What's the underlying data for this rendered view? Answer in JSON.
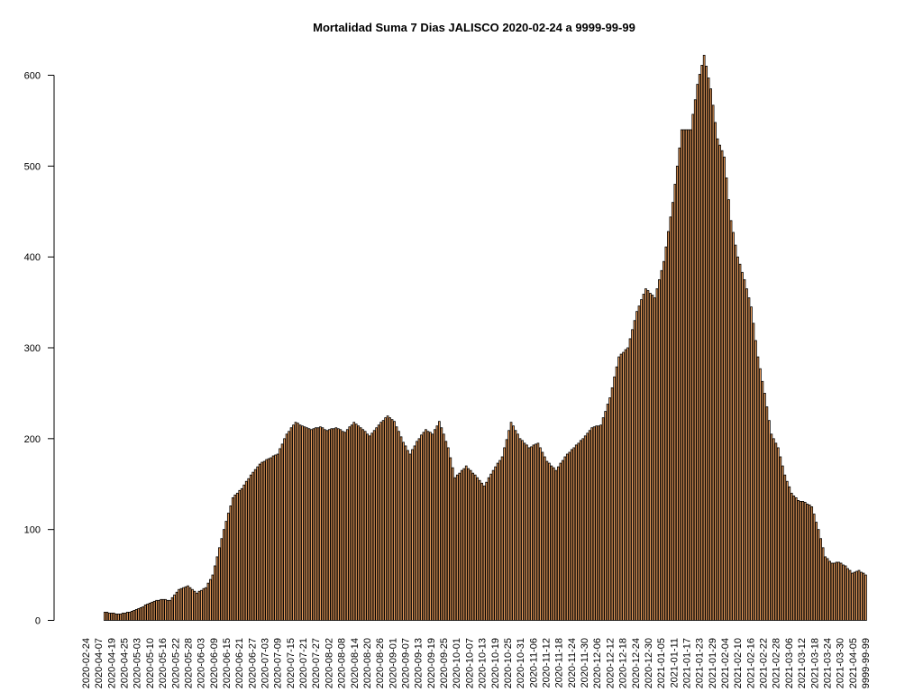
{
  "chart_data": {
    "type": "bar",
    "title": "Mortalidad Suma 7 Dias JALISCO 2020-02-24 a 9999-99-99",
    "xlabel": "",
    "ylabel": "",
    "ylim": [
      0,
      620
    ],
    "yticks": [
      0,
      100,
      200,
      300,
      400,
      500,
      600
    ],
    "x_tick_labels": [
      "2020-02-24",
      "2020-04-07",
      "2020-04-19",
      "2020-04-25",
      "2020-05-03",
      "2020-05-10",
      "2020-05-16",
      "2020-05-22",
      "2020-05-28",
      "2020-06-03",
      "2020-06-09",
      "2020-06-15",
      "2020-06-21",
      "2020-06-27",
      "2020-07-03",
      "2020-07-09",
      "2020-07-15",
      "2020-07-21",
      "2020-07-27",
      "2020-08-02",
      "2020-08-08",
      "2020-08-14",
      "2020-08-20",
      "2020-08-26",
      "2020-09-01",
      "2020-09-07",
      "2020-09-13",
      "2020-09-19",
      "2020-09-25",
      "2020-10-01",
      "2020-10-07",
      "2020-10-13",
      "2020-10-19",
      "2020-10-25",
      "2020-10-31",
      "2020-11-06",
      "2020-11-12",
      "2020-11-18",
      "2020-11-24",
      "2020-11-30",
      "2020-12-06",
      "2020-12-12",
      "2020-12-18",
      "2020-12-24",
      "2020-12-30",
      "2021-01-05",
      "2021-01-11",
      "2021-01-17",
      "2021-01-23",
      "2021-01-29",
      "2021-02-04",
      "2021-02-10",
      "2021-02-16",
      "2021-02-22",
      "2021-02-28",
      "2021-03-06",
      "2021-03-12",
      "2021-03-18",
      "2021-03-24",
      "2021-03-30",
      "2021-04-05",
      "9999-99-99"
    ],
    "bar_fill": "#f4a460",
    "bar_stroke": "#000000",
    "anchors": [
      [
        0,
        0
      ],
      [
        8,
        0
      ],
      [
        9,
        9
      ],
      [
        15,
        7
      ],
      [
        20,
        9
      ],
      [
        24,
        13
      ],
      [
        30,
        20
      ],
      [
        34,
        23
      ],
      [
        38,
        22
      ],
      [
        42,
        34
      ],
      [
        46,
        38
      ],
      [
        50,
        30
      ],
      [
        54,
        36
      ],
      [
        57,
        50
      ],
      [
        62,
        100
      ],
      [
        66,
        135
      ],
      [
        70,
        145
      ],
      [
        74,
        160
      ],
      [
        78,
        172
      ],
      [
        82,
        178
      ],
      [
        86,
        183
      ],
      [
        90,
        205
      ],
      [
        94,
        218
      ],
      [
        97,
        214
      ],
      [
        101,
        210
      ],
      [
        105,
        213
      ],
      [
        108,
        209
      ],
      [
        112,
        212
      ],
      [
        116,
        207
      ],
      [
        120,
        218
      ],
      [
        124,
        210
      ],
      [
        127,
        203
      ],
      [
        131,
        215
      ],
      [
        135,
        225
      ],
      [
        138,
        219
      ],
      [
        142,
        196
      ],
      [
        145,
        183
      ],
      [
        148,
        197
      ],
      [
        152,
        210
      ],
      [
        155,
        205
      ],
      [
        158,
        219
      ],
      [
        162,
        190
      ],
      [
        165,
        157
      ],
      [
        170,
        170
      ],
      [
        175,
        157
      ],
      [
        178,
        148
      ],
      [
        182,
        165
      ],
      [
        186,
        180
      ],
      [
        190,
        218
      ],
      [
        194,
        200
      ],
      [
        198,
        190
      ],
      [
        202,
        195
      ],
      [
        206,
        175
      ],
      [
        210,
        165
      ],
      [
        214,
        180
      ],
      [
        218,
        190
      ],
      [
        222,
        200
      ],
      [
        226,
        212
      ],
      [
        230,
        215
      ],
      [
        234,
        245
      ],
      [
        238,
        290
      ],
      [
        242,
        300
      ],
      [
        246,
        340
      ],
      [
        250,
        365
      ],
      [
        254,
        355
      ],
      [
        258,
        395
      ],
      [
        262,
        460
      ],
      [
        266,
        540
      ],
      [
        270,
        540
      ],
      [
        273,
        590
      ],
      [
        276,
        622
      ],
      [
        279,
        585
      ],
      [
        282,
        530
      ],
      [
        285,
        510
      ],
      [
        288,
        440
      ],
      [
        291,
        400
      ],
      [
        294,
        375
      ],
      [
        297,
        345
      ],
      [
        300,
        290
      ],
      [
        303,
        250
      ],
      [
        306,
        205
      ],
      [
        309,
        190
      ],
      [
        312,
        160
      ],
      [
        315,
        140
      ],
      [
        318,
        132
      ],
      [
        321,
        130
      ],
      [
        324,
        125
      ],
      [
        327,
        100
      ],
      [
        330,
        70
      ],
      [
        333,
        63
      ],
      [
        336,
        64
      ],
      [
        339,
        60
      ],
      [
        342,
        52
      ],
      [
        345,
        55
      ],
      [
        348,
        50
      ]
    ]
  }
}
